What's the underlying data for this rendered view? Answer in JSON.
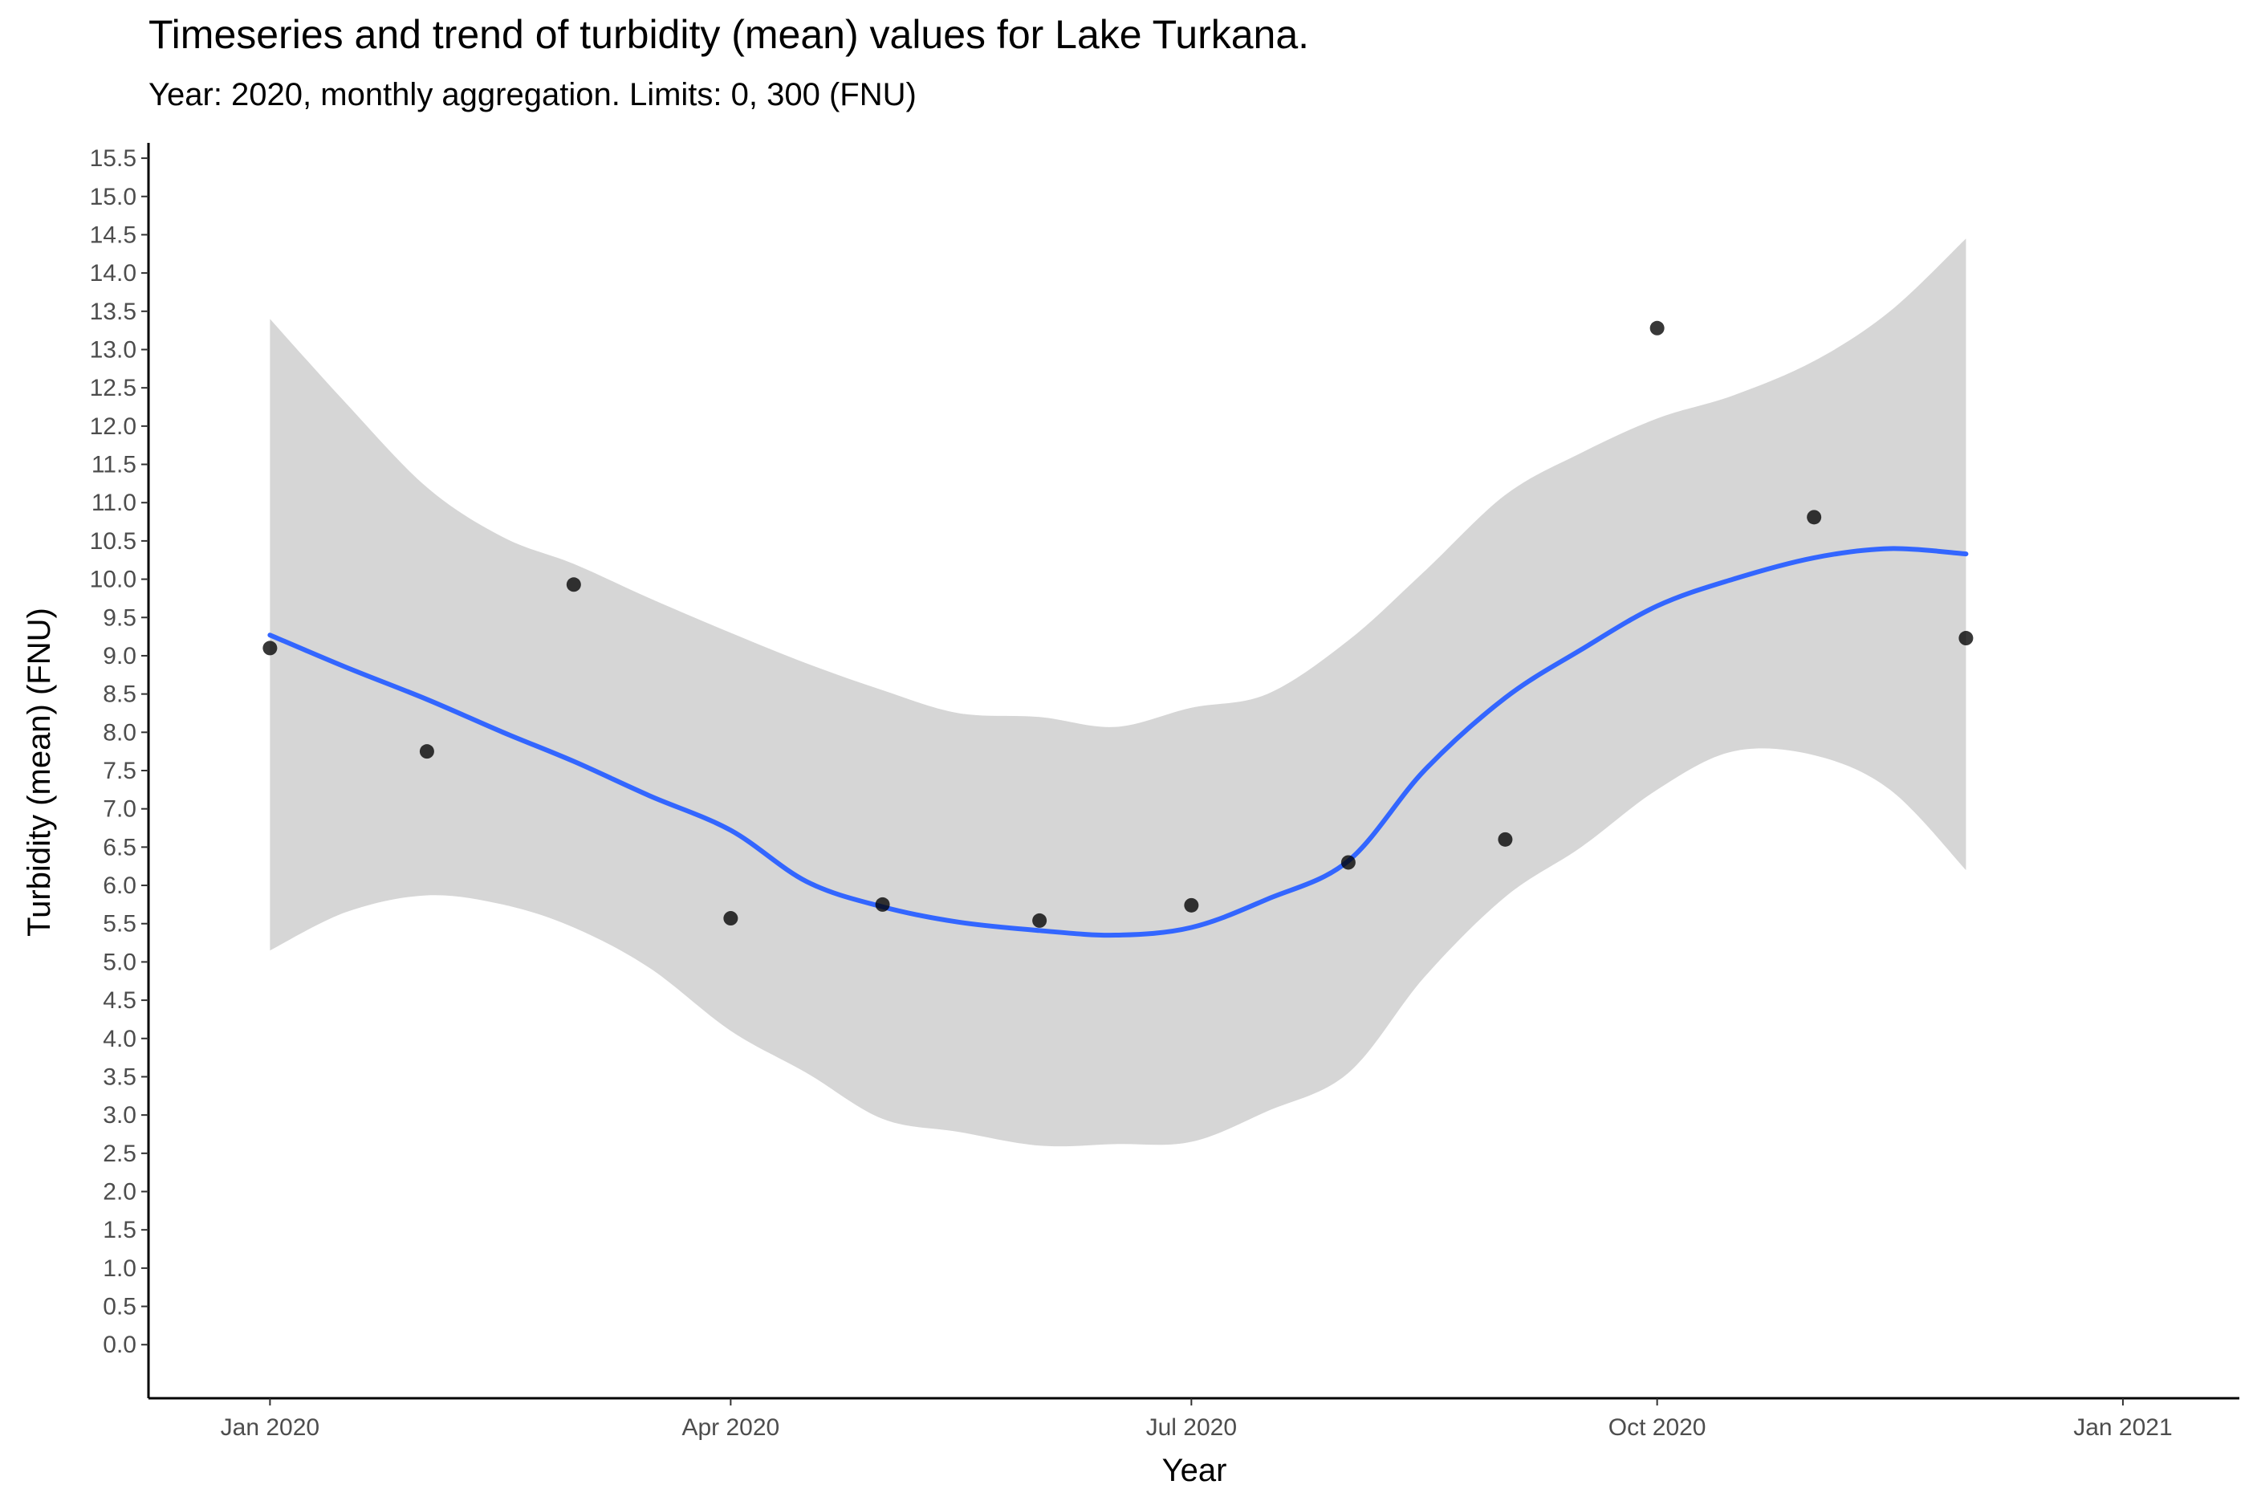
{
  "chart_data": {
    "type": "scatter",
    "title": "Timeseries and trend of turbidity (mean) values for Lake Turkana.",
    "subtitle": "Year: 2020, monthly aggregation. Limits: 0, 300 (FNU)",
    "xlabel": "Year",
    "ylabel": "Turbidity (mean) (FNU)",
    "x_ticks": [
      {
        "date": "2020-01-01",
        "label": "Jan 2020"
      },
      {
        "date": "2020-04-01",
        "label": "Apr 2020"
      },
      {
        "date": "2020-07-01",
        "label": "Jul 2020"
      },
      {
        "date": "2020-10-01",
        "label": "Oct 2020"
      },
      {
        "date": "2021-01-01",
        "label": "Jan 2021"
      }
    ],
    "xlim": [
      "2019-12-08",
      "2021-01-24"
    ],
    "ylim": [
      -0.7,
      15.7
    ],
    "y_ticks": [
      "0.0",
      "0.5",
      "1.0",
      "1.5",
      "2.0",
      "2.5",
      "3.0",
      "3.5",
      "4.0",
      "4.5",
      "5.0",
      "5.5",
      "6.0",
      "6.5",
      "7.0",
      "7.5",
      "8.0",
      "8.5",
      "9.0",
      "9.5",
      "10.0",
      "10.5",
      "11.0",
      "11.5",
      "12.0",
      "12.5",
      "13.0",
      "13.5",
      "14.0",
      "14.5",
      "15.0",
      "15.5"
    ],
    "grid": false,
    "legend": "none",
    "points": [
      {
        "x": "2020-01-01",
        "y": 9.1
      },
      {
        "x": "2020-02-01",
        "y": 7.75
      },
      {
        "x": "2020-03-01",
        "y": 9.93
      },
      {
        "x": "2020-04-01",
        "y": 5.57
      },
      {
        "x": "2020-05-01",
        "y": 5.75
      },
      {
        "x": "2020-06-01",
        "y": 5.54
      },
      {
        "x": "2020-07-01",
        "y": 5.74
      },
      {
        "x": "2020-08-01",
        "y": 6.3
      },
      {
        "x": "2020-09-01",
        "y": 6.6
      },
      {
        "x": "2020-10-01",
        "y": 13.28
      },
      {
        "x": "2020-11-01",
        "y": 10.81
      },
      {
        "x": "2020-12-01",
        "y": 9.23
      }
    ],
    "trend": [
      {
        "x": "2020-01-01",
        "y": 9.27,
        "lower": 5.15,
        "upper": 13.4
      },
      {
        "x": "2020-01-16",
        "y": 8.85,
        "lower": 5.65,
        "upper": 12.3
      },
      {
        "x": "2020-02-01",
        "y": 8.43,
        "lower": 5.87,
        "upper": 11.2
      },
      {
        "x": "2020-02-16",
        "y": 8.0,
        "lower": 5.75,
        "upper": 10.55
      },
      {
        "x": "2020-03-01",
        "y": 7.62,
        "lower": 5.45,
        "upper": 10.2
      },
      {
        "x": "2020-03-16",
        "y": 7.17,
        "lower": 4.92,
        "upper": 9.75
      },
      {
        "x": "2020-04-01",
        "y": 6.72,
        "lower": 4.1,
        "upper": 9.3
      },
      {
        "x": "2020-04-16",
        "y": 6.05,
        "lower": 3.55,
        "upper": 8.9
      },
      {
        "x": "2020-05-01",
        "y": 5.72,
        "lower": 2.95,
        "upper": 8.55
      },
      {
        "x": "2020-05-16",
        "y": 5.52,
        "lower": 2.78,
        "upper": 8.25
      },
      {
        "x": "2020-06-01",
        "y": 5.41,
        "lower": 2.6,
        "upper": 8.2
      },
      {
        "x": "2020-06-16",
        "y": 5.35,
        "lower": 2.62,
        "upper": 8.07
      },
      {
        "x": "2020-07-01",
        "y": 5.45,
        "lower": 2.65,
        "upper": 8.32
      },
      {
        "x": "2020-07-16",
        "y": 5.82,
        "lower": 3.05,
        "upper": 8.5
      },
      {
        "x": "2020-08-01",
        "y": 6.32,
        "lower": 3.55,
        "upper": 9.2
      },
      {
        "x": "2020-08-16",
        "y": 7.5,
        "lower": 4.8,
        "upper": 10.1
      },
      {
        "x": "2020-09-01",
        "y": 8.45,
        "lower": 5.85,
        "upper": 11.1
      },
      {
        "x": "2020-09-16",
        "y": 9.08,
        "lower": 6.5,
        "upper": 11.65
      },
      {
        "x": "2020-10-01",
        "y": 9.65,
        "lower": 7.25,
        "upper": 12.1
      },
      {
        "x": "2020-10-16",
        "y": 10.0,
        "lower": 7.75,
        "upper": 12.4
      },
      {
        "x": "2020-11-01",
        "y": 10.28,
        "lower": 7.7,
        "upper": 12.85
      },
      {
        "x": "2020-11-16",
        "y": 10.4,
        "lower": 7.25,
        "upper": 13.5
      },
      {
        "x": "2020-12-01",
        "y": 10.33,
        "lower": 6.2,
        "upper": 14.45
      }
    ],
    "colors": {
      "points": "#000000",
      "trend": "#3366ff",
      "ribbon": "#d6d6d6",
      "axis": "#000000",
      "tick_label": "#4d4d4d"
    }
  }
}
